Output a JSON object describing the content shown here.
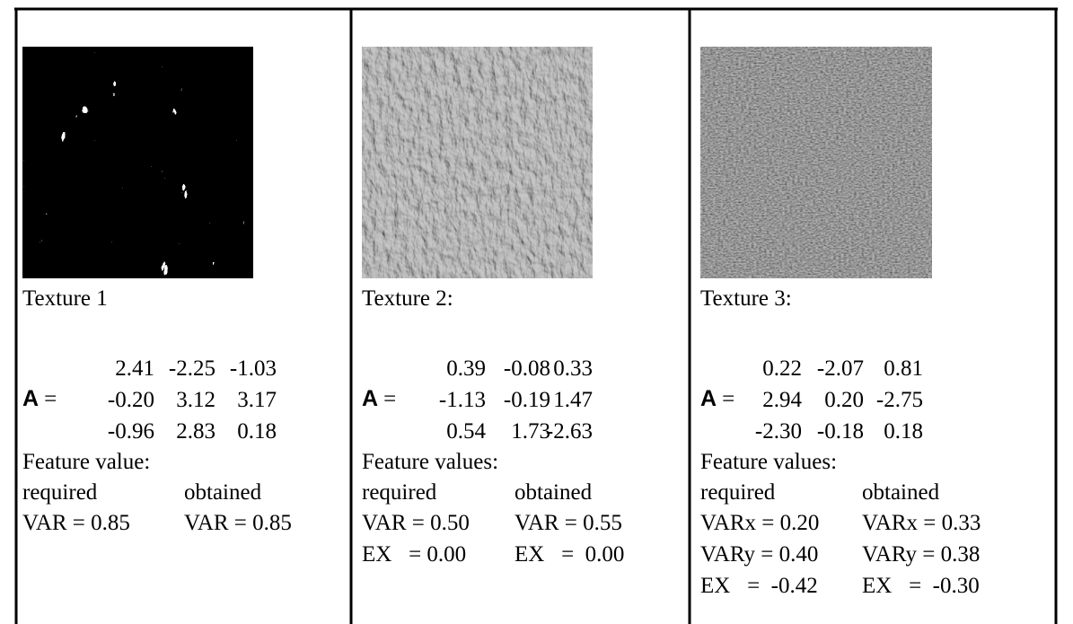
{
  "columns": [
    {
      "caption": "Texture 1",
      "matrix_symbol": "A",
      "matrix_eq": "=",
      "matrix": [
        [
          "2.41",
          "-2.25",
          "-1.03"
        ],
        [
          "-0.20",
          "3.12",
          "3.17"
        ],
        [
          "-0.96",
          "2.83",
          "0.18"
        ]
      ],
      "feature_heading": "Feature value:",
      "col_headers": [
        "required",
        "obtained"
      ],
      "features": [
        [
          "VAR = 0.85",
          "VAR = 0.85"
        ]
      ]
    },
    {
      "caption": "Texture 2:",
      "matrix_symbol": "A",
      "matrix_eq": "=",
      "matrix": [
        [
          "0.39",
          "-0.08",
          "0.33"
        ],
        [
          "-1.13",
          "-0.19",
          "1.47"
        ],
        [
          "0.54",
          "1.73",
          "-2.63"
        ]
      ],
      "feature_heading": "Feature values:",
      "col_headers": [
        "required",
        "obtained"
      ],
      "features": [
        [
          "VAR = 0.50",
          "VAR = 0.55"
        ],
        [
          "EX   = 0.00",
          "EX   =  0.00"
        ]
      ]
    },
    {
      "caption": "Texture 3:",
      "matrix_symbol": "A",
      "matrix_eq": "=",
      "matrix": [
        [
          "0.22",
          "-2.07",
          "0.81"
        ],
        [
          "2.94",
          "0.20",
          "-2.75"
        ],
        [
          "-2.30",
          "-0.18",
          "0.18"
        ]
      ],
      "feature_heading": "Feature values:",
      "col_headers": [
        "required",
        "obtained"
      ],
      "features": [
        [
          "VARx = 0.20",
          "VARx = 0.33"
        ],
        [
          "VARy = 0.40",
          "VARy = 0.38"
        ],
        [
          "EX   =  -0.42",
          "EX   =  -0.30"
        ]
      ]
    }
  ]
}
